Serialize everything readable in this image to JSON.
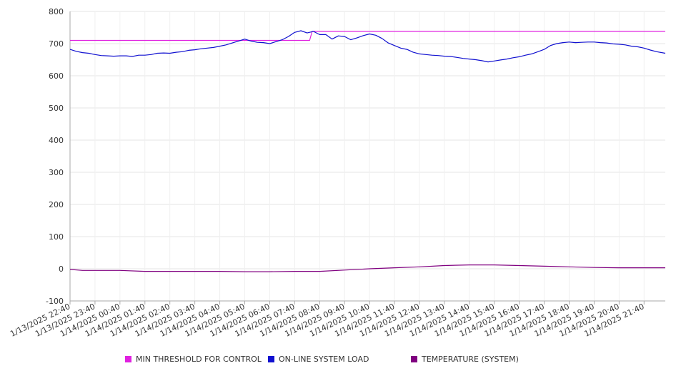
{
  "chart_data": {
    "type": "line",
    "title": "",
    "xlabel": "",
    "ylabel": "",
    "ylim": [
      -100,
      800
    ],
    "yticks": [
      800,
      700,
      600,
      500,
      400,
      300,
      200,
      100,
      0,
      -100
    ],
    "grid": true,
    "legend_position": "bottom",
    "x_tick_labels": [
      "1/13/2025 22:40",
      "1/13/2025 23:40",
      "1/14/2025 00:40",
      "1/14/2025 01:40",
      "1/14/2025 02:40",
      "1/14/2025 03:40",
      "1/14/2025 04:40",
      "1/14/2025 05:40",
      "1/14/2025 06:40",
      "1/14/2025 07:40",
      "1/14/2025 08:40",
      "1/14/2025 09:40",
      "1/14/2025 10:40",
      "1/14/2025 11:40",
      "1/14/2025 12:40",
      "1/14/2025 13:40",
      "1/14/2025 14:40",
      "1/14/2025 15:40",
      "1/14/2025 16:40",
      "1/14/2025 17:40",
      "1/14/2025 18:40",
      "1/14/2025 19:40",
      "1/14/2025 20:40",
      "1/14/2025 21:40"
    ],
    "series": [
      {
        "name": "MIN THRESHOLD FOR CONTROL",
        "color": "#e020e0",
        "points": [
          [
            0,
            710
          ],
          [
            9.6,
            710
          ],
          [
            9.7,
            738
          ],
          [
            23.85,
            738
          ]
        ]
      },
      {
        "name": "ON-LINE SYSTEM LOAD",
        "color": "#1010d0",
        "points": [
          [
            0,
            682
          ],
          [
            0.25,
            676
          ],
          [
            0.5,
            672
          ],
          [
            0.75,
            670
          ],
          [
            1,
            666
          ],
          [
            1.25,
            663
          ],
          [
            1.5,
            662
          ],
          [
            1.75,
            661
          ],
          [
            2,
            662
          ],
          [
            2.25,
            662
          ],
          [
            2.5,
            660
          ],
          [
            2.75,
            664
          ],
          [
            3,
            664
          ],
          [
            3.25,
            666
          ],
          [
            3.5,
            670
          ],
          [
            3.75,
            671
          ],
          [
            4,
            670
          ],
          [
            4.25,
            673
          ],
          [
            4.5,
            675
          ],
          [
            4.75,
            679
          ],
          [
            5,
            681
          ],
          [
            5.25,
            684
          ],
          [
            5.5,
            686
          ],
          [
            5.75,
            688
          ],
          [
            6,
            692
          ],
          [
            6.25,
            696
          ],
          [
            6.5,
            702
          ],
          [
            6.75,
            708
          ],
          [
            7,
            714
          ],
          [
            7.25,
            708
          ],
          [
            7.5,
            704
          ],
          [
            7.75,
            703
          ],
          [
            8,
            700
          ],
          [
            8.25,
            706
          ],
          [
            8.5,
            712
          ],
          [
            8.75,
            722
          ],
          [
            9,
            735
          ],
          [
            9.25,
            740
          ],
          [
            9.5,
            733
          ],
          [
            9.75,
            738
          ],
          [
            10,
            728
          ],
          [
            10.25,
            728
          ],
          [
            10.5,
            714
          ],
          [
            10.75,
            724
          ],
          [
            11,
            722
          ],
          [
            11.25,
            712
          ],
          [
            11.5,
            718
          ],
          [
            11.75,
            725
          ],
          [
            12,
            730
          ],
          [
            12.25,
            726
          ],
          [
            12.5,
            716
          ],
          [
            12.75,
            702
          ],
          [
            13,
            694
          ],
          [
            13.25,
            686
          ],
          [
            13.5,
            682
          ],
          [
            13.75,
            673
          ],
          [
            14,
            668
          ],
          [
            14.25,
            666
          ],
          [
            14.5,
            664
          ],
          [
            14.75,
            663
          ],
          [
            15,
            661
          ],
          [
            15.25,
            660
          ],
          [
            15.5,
            657
          ],
          [
            15.75,
            654
          ],
          [
            16,
            652
          ],
          [
            16.25,
            650
          ],
          [
            16.5,
            647
          ],
          [
            16.75,
            643
          ],
          [
            17,
            646
          ],
          [
            17.25,
            649
          ],
          [
            17.5,
            652
          ],
          [
            17.75,
            656
          ],
          [
            18,
            659
          ],
          [
            18.25,
            664
          ],
          [
            18.5,
            668
          ],
          [
            18.75,
            675
          ],
          [
            19,
            682
          ],
          [
            19.25,
            694
          ],
          [
            19.5,
            700
          ],
          [
            19.75,
            703
          ],
          [
            20,
            705
          ],
          [
            20.25,
            703
          ],
          [
            20.5,
            704
          ],
          [
            20.75,
            705
          ],
          [
            21,
            705
          ],
          [
            21.25,
            703
          ],
          [
            21.5,
            702
          ],
          [
            21.75,
            699
          ],
          [
            22,
            698
          ],
          [
            22.25,
            696
          ],
          [
            22.5,
            692
          ],
          [
            22.75,
            690
          ],
          [
            23,
            686
          ],
          [
            23.25,
            680
          ],
          [
            23.5,
            675
          ],
          [
            23.85,
            670
          ]
        ]
      },
      {
        "name": "TEMPERATURE (SYSTEM)",
        "color": "#800080",
        "points": [
          [
            0,
            -2
          ],
          [
            0.5,
            -5
          ],
          [
            1,
            -5
          ],
          [
            2,
            -5
          ],
          [
            3,
            -8
          ],
          [
            4,
            -8
          ],
          [
            5,
            -8
          ],
          [
            6,
            -8
          ],
          [
            7,
            -9
          ],
          [
            8,
            -9
          ],
          [
            9,
            -8
          ],
          [
            10,
            -8
          ],
          [
            11,
            -4
          ],
          [
            12,
            0
          ],
          [
            13,
            3
          ],
          [
            14,
            6
          ],
          [
            15,
            10
          ],
          [
            16,
            12
          ],
          [
            17,
            12
          ],
          [
            18,
            10
          ],
          [
            19,
            8
          ],
          [
            20,
            6
          ],
          [
            21,
            4
          ],
          [
            22,
            3
          ],
          [
            23,
            3
          ],
          [
            23.85,
            3
          ]
        ]
      }
    ]
  }
}
